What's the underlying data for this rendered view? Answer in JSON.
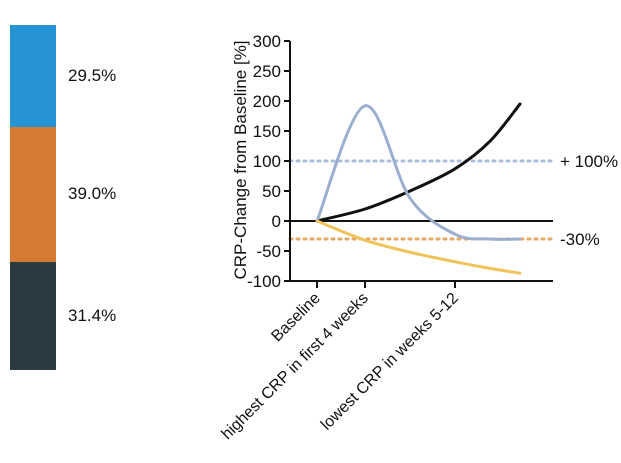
{
  "chart_data": [
    {
      "type": "bar",
      "subtype": "100%-stacked",
      "values": [
        29.5,
        39.0,
        31.4
      ],
      "labels": [
        "29.5%",
        "39.0%",
        "31.4%"
      ],
      "colors": [
        "#2694d2",
        "#d67a32",
        "#2a3b42"
      ]
    },
    {
      "type": "line",
      "ylabel": "CRP-Change from Baseline [%]",
      "ylim": [
        -100,
        300
      ],
      "yticks": [
        -100,
        -50,
        0,
        50,
        100,
        150,
        200,
        250,
        300
      ],
      "xticklabels": [
        "Baseline",
        "highest CRP in first 4 weeks",
        "lowest CRP in weeks 5-12"
      ],
      "x": [
        0,
        1,
        2,
        3,
        4,
        5
      ],
      "series": [
        {
          "color": "#111111",
          "values": [
            0,
            20,
            50,
            87,
            133,
            195
          ]
        },
        {
          "color": "#9aaecf",
          "values": [
            0,
            192,
            38,
            -22,
            -30,
            -30
          ]
        },
        {
          "color": "#f0c35a",
          "values": [
            0,
            -32,
            -52,
            -68,
            -79,
            -87
          ]
        }
      ],
      "reference_lines": [
        {
          "value": 100,
          "label": "+ 100%",
          "color": "#a9bfdc"
        },
        {
          "value": -30,
          "label": "-30%",
          "color": "#e8a860"
        }
      ]
    }
  ]
}
